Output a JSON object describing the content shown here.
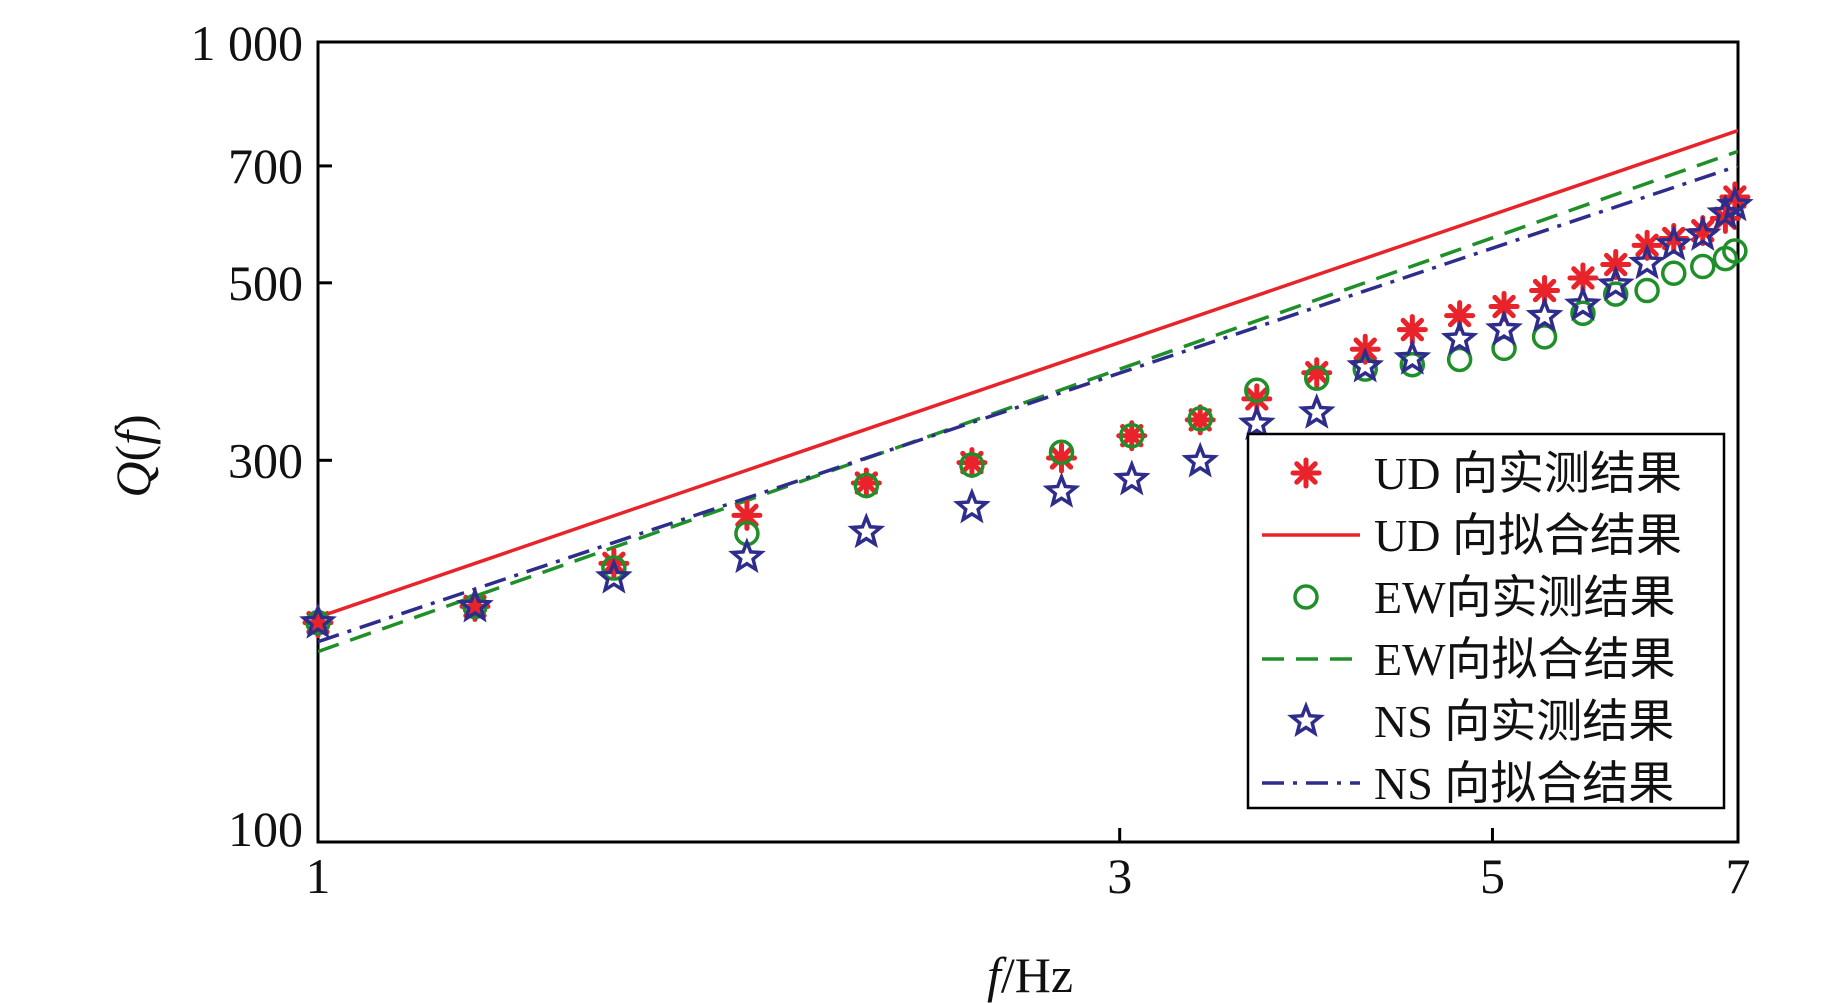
{
  "chart_data": {
    "type": "scatter",
    "title": "",
    "xlabel": {
      "var": "f",
      "unit": "/Hz"
    },
    "ylabel": {
      "var": "Q",
      "arg": "f"
    },
    "xscale": "log",
    "yscale": "log",
    "xlim": [
      1,
      7
    ],
    "ylim": [
      100,
      1000
    ],
    "xticks": [
      1,
      3,
      5,
      7
    ],
    "xtick_labels": [
      "1",
      "3",
      "5",
      "7"
    ],
    "yticks": [
      100,
      300,
      500,
      700,
      1000
    ],
    "ytick_labels": [
      "100",
      "300",
      "500",
      "700",
      "1 000"
    ],
    "grid": false,
    "legend_position": "bottom-right",
    "colors": {
      "UD": "#e8232a",
      "EW": "#1f8f2a",
      "NS": "#2e2d8c"
    },
    "series": [
      {
        "name": "UD 向实测结果",
        "kind": "measured",
        "marker": "asterisk",
        "color": "#e8232a",
        "x": [
          1.0,
          1.24,
          1.5,
          1.8,
          2.12,
          2.45,
          2.77,
          3.05,
          3.35,
          3.62,
          3.93,
          4.2,
          4.48,
          4.78,
          5.08,
          5.37,
          5.66,
          5.92,
          6.18,
          6.41,
          6.67,
          6.88,
          6.97
        ],
        "y": [
          188,
          197,
          223,
          256,
          281,
          298,
          302,
          322,
          337,
          358,
          386,
          413,
          437,
          455,
          467,
          489,
          507,
          527,
          557,
          568,
          581,
          602,
          640
        ]
      },
      {
        "name": "UD 向拟合结果",
        "kind": "fit",
        "line": "solid",
        "color": "#e8232a",
        "x": [
          1.0,
          7.0
        ],
        "y": [
          191,
          775
        ]
      },
      {
        "name": "EW向实测结果",
        "kind": "measured",
        "marker": "circle",
        "color": "#1f8f2a",
        "x": [
          1.0,
          1.24,
          1.5,
          1.8,
          2.12,
          2.45,
          2.77,
          3.05,
          3.35,
          3.62,
          3.93,
          4.2,
          4.48,
          4.78,
          5.08,
          5.37,
          5.66,
          5.92,
          6.18,
          6.41,
          6.67,
          6.88,
          6.97
        ],
        "y": [
          188,
          197,
          220,
          243,
          279,
          296,
          307,
          322,
          338,
          367,
          380,
          390,
          395,
          401,
          414,
          428,
          458,
          484,
          489,
          514,
          524,
          536,
          548
        ]
      },
      {
        "name": "EW向拟合结果",
        "kind": "fit",
        "line": "dashed",
        "color": "#1f8f2a",
        "x": [
          1.0,
          7.0
        ],
        "y": [
          173,
          730
        ]
      },
      {
        "name": "NS 向实测结果",
        "kind": "measured",
        "marker": "star",
        "color": "#2e2d8c",
        "x": [
          1.0,
          1.24,
          1.5,
          1.8,
          2.12,
          2.45,
          2.77,
          3.05,
          3.35,
          3.62,
          3.93,
          4.2,
          4.48,
          4.78,
          5.08,
          5.37,
          5.66,
          5.92,
          6.18,
          6.41,
          6.67,
          6.88,
          6.97
        ],
        "y": [
          188,
          197,
          214,
          227,
          244,
          262,
          274,
          284,
          299,
          333,
          344,
          393,
          402,
          425,
          437,
          454,
          469,
          497,
          529,
          558,
          574,
          610,
          625
        ]
      },
      {
        "name": "NS 向拟合结果",
        "kind": "fit",
        "line": "dashdot",
        "color": "#2e2d8c",
        "x": [
          1.0,
          7.0
        ],
        "y": [
          178,
          700
        ]
      }
    ]
  }
}
